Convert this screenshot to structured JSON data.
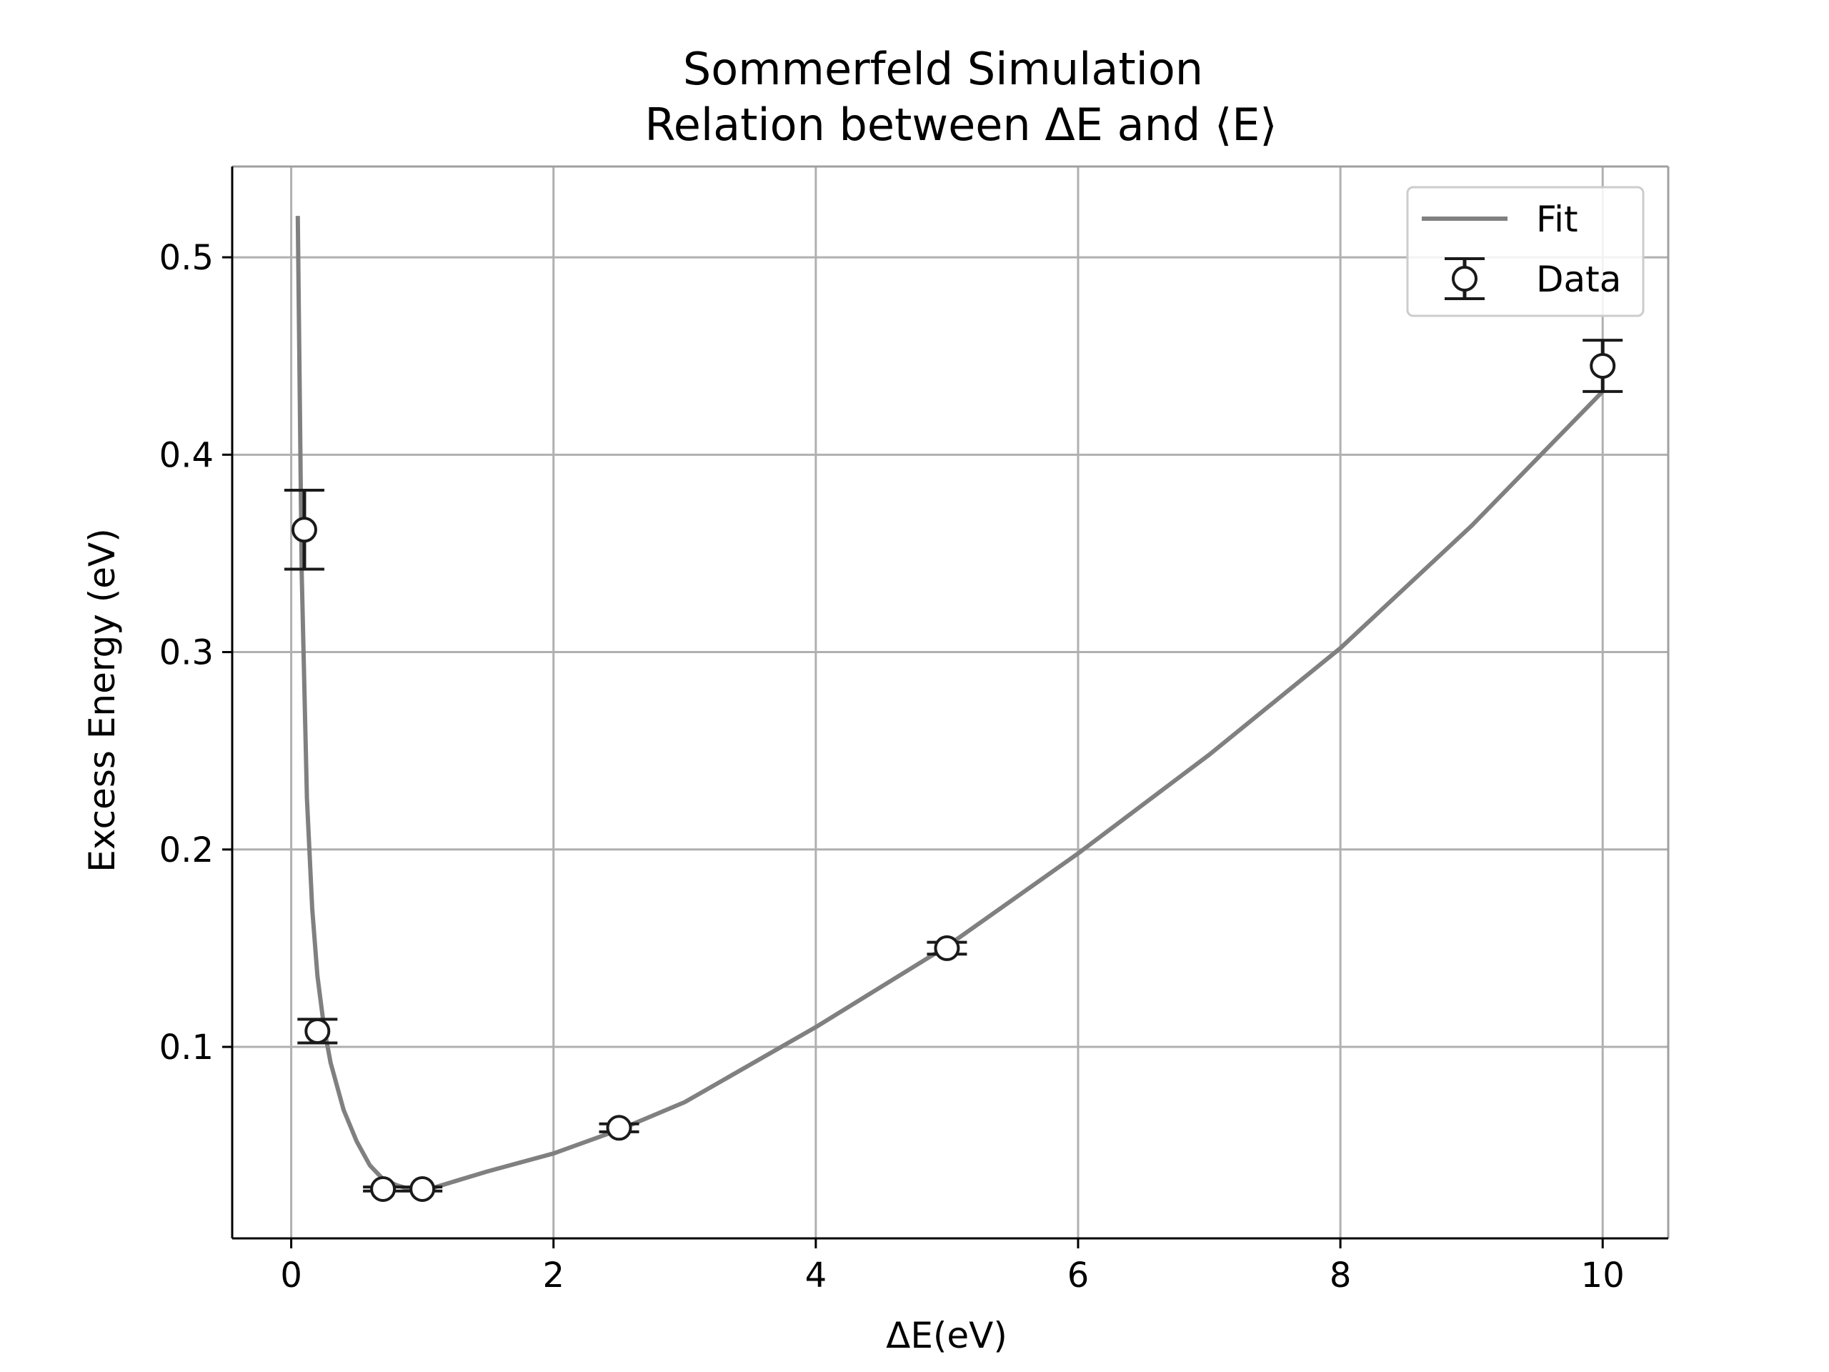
{
  "chart_data": {
    "type": "scatter",
    "title": "Sommerfeld Simulation",
    "subtitle": "Relation between ΔE and ⟨E⟩",
    "xlabel": "ΔE(eV)",
    "ylabel": "Excess Energy (eV)",
    "xlim": [
      -0.45,
      10.5
    ],
    "ylim": [
      0.003,
      0.546
    ],
    "xticks": [
      0,
      2,
      4,
      6,
      8,
      10
    ],
    "xtick_labels": [
      "0",
      "2",
      "4",
      "6",
      "8",
      "10"
    ],
    "yticks": [
      0.1,
      0.2,
      0.3,
      0.4,
      0.5
    ],
    "ytick_labels": [
      "0.1",
      "0.2",
      "0.3",
      "0.4",
      "0.5"
    ],
    "grid": true,
    "legend_position": "top-right",
    "colors": {
      "fit": "#808080",
      "data": "#1a1a1a",
      "marker_face": "#ffffff",
      "grid": "#b0b0b0"
    },
    "series": [
      {
        "name": "Fit",
        "kind": "line",
        "x": [
          0.05,
          0.08,
          0.12,
          0.16,
          0.2,
          0.25,
          0.3,
          0.4,
          0.5,
          0.6,
          0.7,
          0.8,
          0.9,
          1.0,
          1.2,
          1.5,
          2.0,
          2.5,
          3.0,
          4.0,
          5.0,
          6.0,
          7.0,
          8.0,
          9.0,
          10.0
        ],
        "y": [
          0.521,
          0.34,
          0.226,
          0.17,
          0.136,
          0.11,
          0.092,
          0.068,
          0.052,
          0.04,
          0.033,
          0.03,
          0.028,
          0.027,
          0.031,
          0.037,
          0.046,
          0.058,
          0.072,
          0.11,
          0.151,
          0.198,
          0.248,
          0.302,
          0.364,
          0.432
        ]
      },
      {
        "name": "Data",
        "kind": "errorbar",
        "points": [
          {
            "x": 0.1,
            "y": 0.362,
            "yerr": 0.02
          },
          {
            "x": 0.2,
            "y": 0.108,
            "yerr": 0.006
          },
          {
            "x": 0.7,
            "y": 0.028,
            "yerr": 0.001
          },
          {
            "x": 1.0,
            "y": 0.028,
            "yerr": 0.001
          },
          {
            "x": 2.5,
            "y": 0.059,
            "yerr": 0.002
          },
          {
            "x": 5.0,
            "y": 0.15,
            "yerr": 0.003
          },
          {
            "x": 10.0,
            "y": 0.445,
            "yerr": 0.013
          }
        ]
      }
    ]
  }
}
